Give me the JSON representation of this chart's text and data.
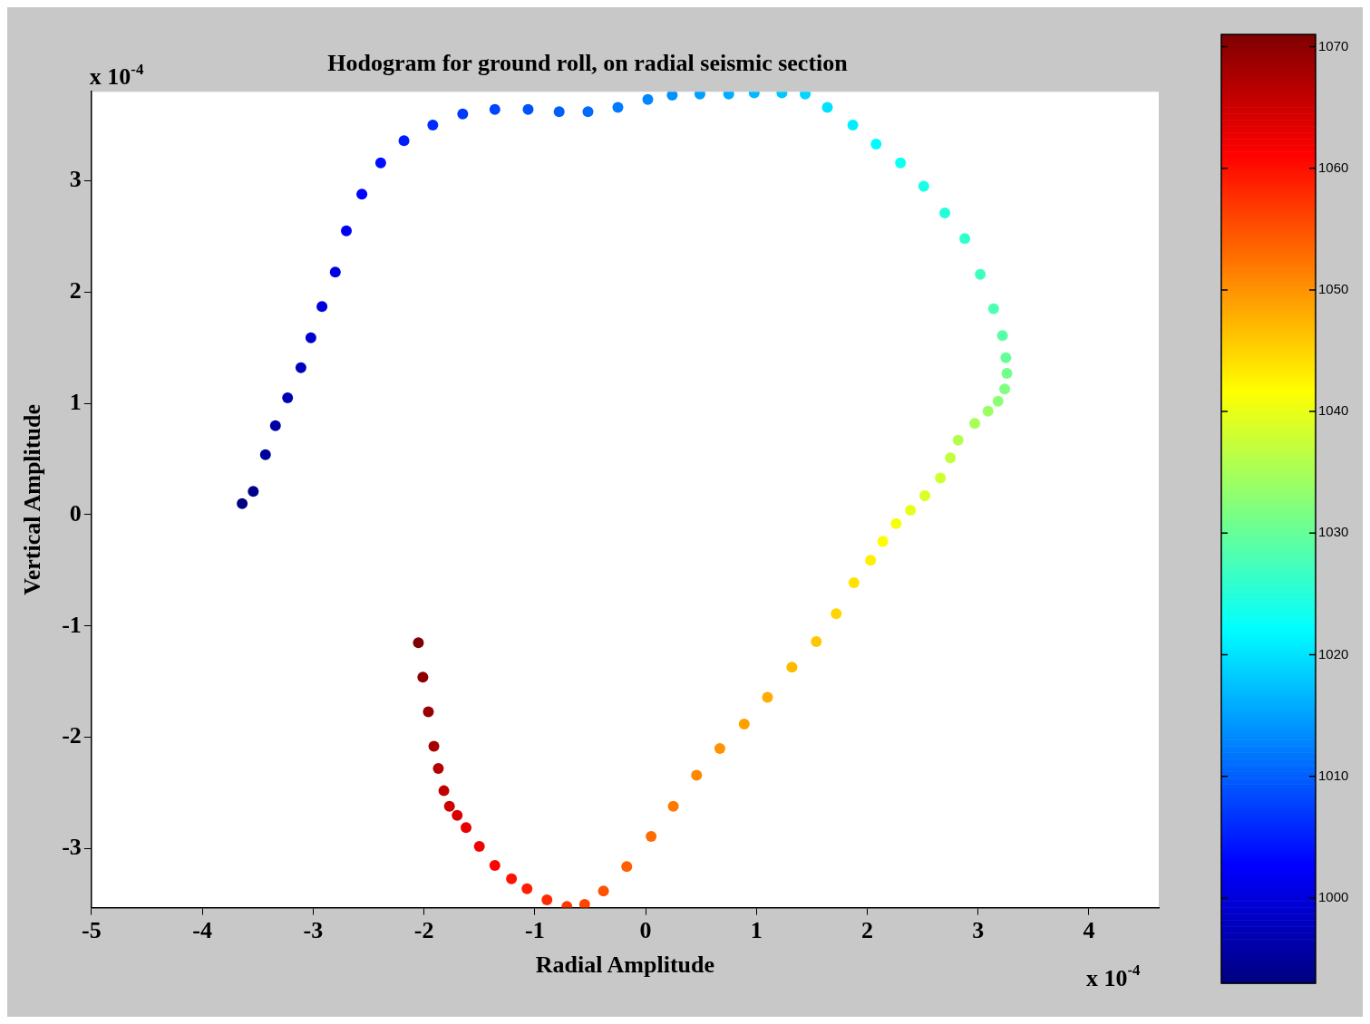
{
  "chart_data": {
    "type": "scatter",
    "title": "Hodogram for ground roll, on radial seismic section",
    "xlabel": "Radial Amplitude",
    "ylabel": "Vertical Amplitude",
    "annotations": [
      "x 10$^{-4}$",
      "x 10$^{-4}$"
    ],
    "marker": "circle",
    "xlim": [
      -5,
      4.63
    ],
    "xticks": [
      -5,
      -4,
      -3,
      -2,
      -1,
      0,
      1,
      2,
      3,
      4
    ],
    "ylim": [
      -3.53,
      3.8
    ],
    "yticks": [
      -3,
      -2,
      -1,
      0,
      1,
      2,
      3
    ],
    "clim": [
      993,
      1071
    ],
    "cticks": [
      1000,
      1010,
      1020,
      1030,
      1040,
      1050,
      1060,
      1070
    ],
    "series": [
      {
        "x": [
          -3.64,
          -3.54,
          -3.43,
          -3.34,
          -3.23,
          -3.11,
          -3.02,
          -2.92,
          -2.8,
          -2.7,
          -2.56,
          -2.39,
          -2.18,
          -1.92,
          -1.65,
          -1.36,
          -1.06,
          -0.78,
          -0.52,
          -0.25,
          0.02,
          0.24,
          0.49,
          0.75,
          0.98,
          1.23,
          1.44,
          1.64,
          1.87,
          2.08,
          2.3,
          2.51,
          2.7,
          2.88,
          3.02,
          3.14,
          3.22,
          3.25,
          3.26,
          3.24,
          3.18,
          3.09,
          2.97,
          2.82,
          2.75,
          2.66,
          2.52,
          2.39,
          2.26,
          2.14,
          2.03,
          1.88,
          1.72,
          1.54,
          1.32,
          1.1,
          0.89,
          0.67,
          0.46,
          0.25,
          0.05,
          -0.17,
          -0.38,
          -0.55,
          -0.71,
          -0.89,
          -1.07,
          -1.21,
          -1.36,
          -1.5,
          -1.62,
          -1.7,
          -1.77,
          -1.82,
          -1.87,
          -1.91,
          -1.96,
          -2.01,
          -2.05
        ],
        "values": [
          0.1,
          0.21,
          0.54,
          0.8,
          1.05,
          1.32,
          1.59,
          1.87,
          2.18,
          2.55,
          2.88,
          3.16,
          3.36,
          3.5,
          3.6,
          3.64,
          3.64,
          3.62,
          3.62,
          3.66,
          3.73,
          3.77,
          3.78,
          3.78,
          3.79,
          3.79,
          3.78,
          3.66,
          3.5,
          3.33,
          3.16,
          2.95,
          2.71,
          2.48,
          2.16,
          1.85,
          1.61,
          1.41,
          1.27,
          1.13,
          1.02,
          0.93,
          0.82,
          0.67,
          0.51,
          0.33,
          0.17,
          0.04,
          -0.08,
          -0.24,
          -0.41,
          -0.61,
          -0.89,
          -1.14,
          -1.37,
          -1.64,
          -1.88,
          -2.1,
          -2.34,
          -2.62,
          -2.89,
          -3.16,
          -3.38,
          -3.5,
          -3.52,
          -3.46,
          -3.36,
          -3.27,
          -3.15,
          -2.98,
          -2.81,
          -2.7,
          -2.62,
          -2.48,
          -2.28,
          -2.08,
          -1.77,
          -1.46,
          -1.15
        ],
        "cvalues": [
          993,
          994,
          995,
          996,
          997,
          998,
          999,
          1000,
          1001,
          1002,
          1003,
          1004,
          1005,
          1006,
          1007,
          1008,
          1009,
          1010,
          1011,
          1012,
          1013,
          1014,
          1015,
          1016,
          1017,
          1018,
          1019,
          1020,
          1021,
          1022,
          1023,
          1024,
          1025,
          1026,
          1027,
          1028,
          1029,
          1030,
          1031,
          1032,
          1033,
          1034,
          1035,
          1036,
          1037,
          1038,
          1039,
          1040,
          1041,
          1042,
          1043,
          1044,
          1045,
          1046,
          1047,
          1048,
          1049,
          1050,
          1051,
          1052,
          1053,
          1054,
          1055,
          1056,
          1057,
          1058,
          1059,
          1060,
          1061,
          1062,
          1063,
          1064,
          1065,
          1066,
          1067,
          1068,
          1069,
          1070,
          1071
        ]
      }
    ]
  }
}
